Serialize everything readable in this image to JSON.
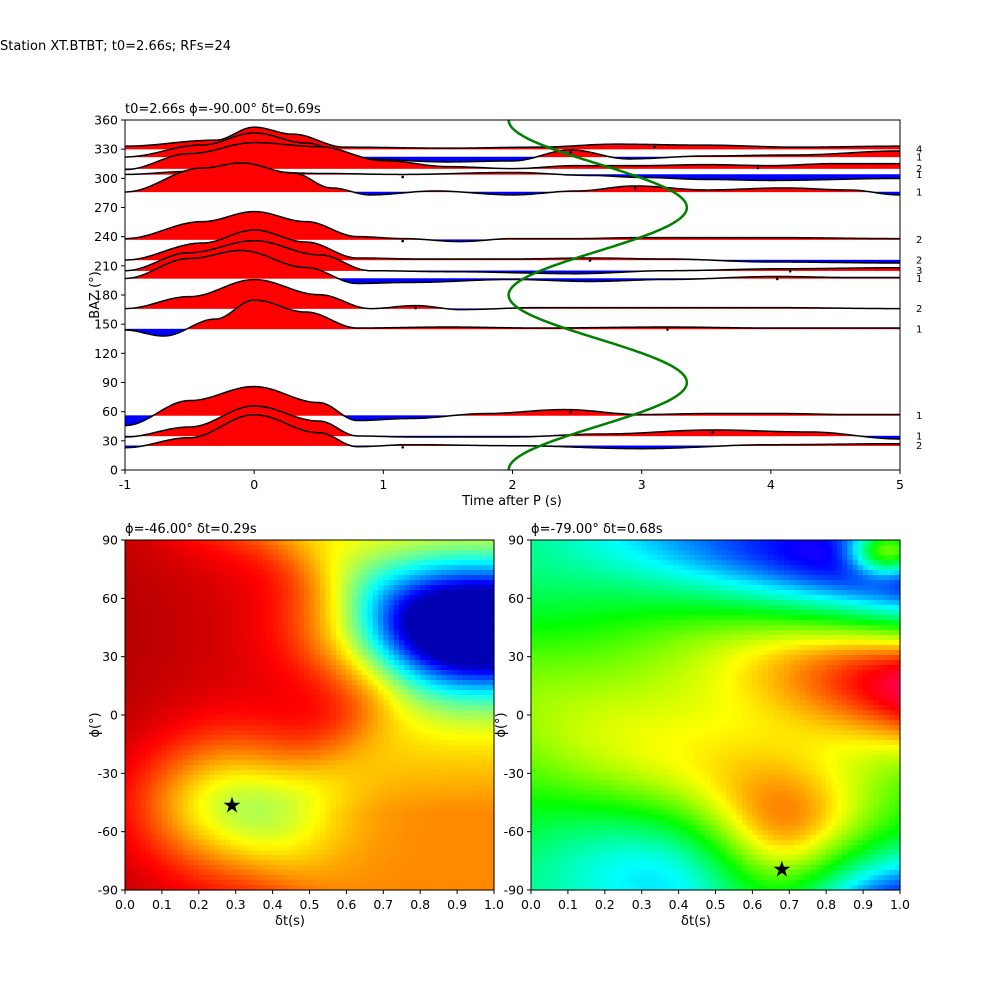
{
  "figure": {
    "suptitle": "Station XT.BTBT; t0=2.66s; RFs=24"
  },
  "chart_data": [
    {
      "type": "line",
      "title": "t0=2.66s ϕ=-90.00° δt=0.69s",
      "xlabel": "Time after P (s)",
      "ylabel": "BAZ (°)",
      "xlim": [
        -1,
        5
      ],
      "ylim": [
        0,
        360
      ],
      "xticks": [
        -1,
        0,
        1,
        2,
        3,
        4,
        5
      ],
      "yticks": [
        0,
        30,
        60,
        90,
        120,
        150,
        180,
        210,
        240,
        270,
        300,
        330,
        360
      ],
      "amp_scale": 10,
      "traces": [
        {
          "baz": 330,
          "count": "4",
          "pick_t": 3.1,
          "pts": [
            [
              -1,
              0.3
            ],
            [
              -0.3,
              0.9
            ],
            [
              0,
              2.2
            ],
            [
              0.3,
              1.5
            ],
            [
              0.7,
              0.2
            ],
            [
              1.5,
              0.1
            ],
            [
              2.2,
              0.2
            ],
            [
              2.8,
              0.5
            ],
            [
              3.5,
              0.4
            ],
            [
              4.2,
              0.2
            ],
            [
              5,
              0.3
            ]
          ]
        },
        {
          "baz": 322,
          "count": "1",
          "pick_t": 2.45,
          "pts": [
            [
              -1,
              0
            ],
            [
              -0.4,
              1.2
            ],
            [
              0,
              2.4
            ],
            [
              0.4,
              1.4
            ],
            [
              0.8,
              -0.2
            ],
            [
              1.5,
              -0.5
            ],
            [
              2,
              -0.4
            ],
            [
              2.45,
              0.7
            ],
            [
              2.9,
              -0.2
            ],
            [
              3.5,
              0.1
            ],
            [
              4.2,
              0.2
            ],
            [
              5,
              0.6
            ]
          ]
        },
        {
          "baz": 310,
          "count": "2",
          "pick_t": 3.9,
          "pts": [
            [
              -1,
              -0.1
            ],
            [
              -0.5,
              1.5
            ],
            [
              0,
              2.6
            ],
            [
              0.5,
              2.2
            ],
            [
              1,
              0.8
            ],
            [
              1.5,
              0.2
            ],
            [
              2,
              0
            ],
            [
              2.5,
              0.3
            ],
            [
              3,
              0.3
            ],
            [
              3.5,
              0.4
            ],
            [
              4,
              0.3
            ],
            [
              4.5,
              0.5
            ],
            [
              5,
              0.5
            ]
          ]
        },
        {
          "baz": 304,
          "count": "1",
          "pick_t": 1.15,
          "pts": [
            [
              -1,
              0
            ],
            [
              -0.5,
              0.3
            ],
            [
              0,
              0.3
            ],
            [
              0.5,
              0.1
            ],
            [
              1.15,
              0
            ],
            [
              2,
              0.2
            ],
            [
              2.6,
              -0.1
            ],
            [
              3,
              -0.3
            ],
            [
              3.5,
              -0.5
            ],
            [
              4,
              -0.6
            ],
            [
              5,
              -0.4
            ]
          ]
        },
        {
          "baz": 286,
          "count": "1",
          "pick_t": 2.95,
          "pts": [
            [
              -1,
              0
            ],
            [
              -0.4,
              2.4
            ],
            [
              -0.1,
              2.9
            ],
            [
              0.3,
              1.9
            ],
            [
              0.6,
              0.4
            ],
            [
              0.9,
              -0.3
            ],
            [
              1.4,
              0.1
            ],
            [
              2,
              -0.3
            ],
            [
              2.5,
              0.1
            ],
            [
              2.95,
              0.6
            ],
            [
              3.5,
              0.2
            ],
            [
              4.1,
              0.4
            ],
            [
              4.6,
              0.2
            ],
            [
              5,
              -0.3
            ]
          ]
        },
        {
          "baz": 237,
          "count": "2",
          "pick_t": 1.15,
          "pts": [
            [
              -1,
              0.1
            ],
            [
              -0.4,
              1.8
            ],
            [
              0,
              2.8
            ],
            [
              0.4,
              1.8
            ],
            [
              0.8,
              0.3
            ],
            [
              1.15,
              0.1
            ],
            [
              1.6,
              -0.2
            ],
            [
              2,
              0.1
            ],
            [
              2.5,
              0.1
            ],
            [
              3,
              0.2
            ],
            [
              4,
              0.2
            ],
            [
              5,
              0.1
            ]
          ]
        },
        {
          "baz": 216,
          "count": "2",
          "pick_t": 2.6,
          "pts": [
            [
              -1,
              0
            ],
            [
              -0.4,
              1.7
            ],
            [
              0,
              3.0
            ],
            [
              0.4,
              1.8
            ],
            [
              0.8,
              0.2
            ],
            [
              1.3,
              0.1
            ],
            [
              2,
              0.1
            ],
            [
              2.6,
              0.2
            ],
            [
              3.2,
              0.1
            ],
            [
              4,
              -0.2
            ],
            [
              5,
              -0.3
            ]
          ]
        },
        {
          "baz": 205,
          "count": "3",
          "pick_t": 4.15,
          "pts": [
            [
              -1,
              0
            ],
            [
              -0.5,
              1.8
            ],
            [
              0,
              3.0
            ],
            [
              0.5,
              1.6
            ],
            [
              0.9,
              0
            ],
            [
              1.5,
              -0.1
            ],
            [
              2.5,
              -0.3
            ],
            [
              3.2,
              0
            ],
            [
              4.15,
              0.2
            ],
            [
              5,
              0.3
            ]
          ]
        },
        {
          "baz": 197,
          "count": "1",
          "pick_t": 4.05,
          "pts": [
            [
              -1,
              0
            ],
            [
              -0.5,
              2.0
            ],
            [
              -0.1,
              2.8
            ],
            [
              0.4,
              1.1
            ],
            [
              0.8,
              -0.5
            ],
            [
              1.2,
              -0.4
            ],
            [
              2,
              -0.1
            ],
            [
              2.6,
              -0.3
            ],
            [
              3.2,
              -0.1
            ],
            [
              4.05,
              0.2
            ],
            [
              4.6,
              0.1
            ],
            [
              5,
              0.1
            ]
          ]
        },
        {
          "baz": 166,
          "count": "2",
          "pick_t": 1.25,
          "pts": [
            [
              -1,
              0
            ],
            [
              -0.5,
              1.2
            ],
            [
              0,
              2.9
            ],
            [
              0.5,
              1.4
            ],
            [
              0.9,
              0
            ],
            [
              1.25,
              0.3
            ],
            [
              1.6,
              -0.1
            ],
            [
              2.2,
              0.1
            ],
            [
              3,
              0.1
            ],
            [
              4,
              0.1
            ],
            [
              5,
              0
            ]
          ]
        },
        {
          "baz": 145,
          "count": "1",
          "pick_t": 3.2,
          "pts": [
            [
              -1,
              -0.1
            ],
            [
              -0.7,
              -0.7
            ],
            [
              -0.3,
              1.0
            ],
            [
              0,
              2.9
            ],
            [
              0.4,
              1.7
            ],
            [
              0.8,
              0.1
            ],
            [
              1.5,
              0.2
            ],
            [
              2.2,
              0.1
            ],
            [
              3.2,
              0.2
            ],
            [
              4,
              0.1
            ],
            [
              5,
              0.1
            ]
          ]
        },
        {
          "baz": 56,
          "count": "1",
          "pick_t": 2.45,
          "pts": [
            [
              -1,
              -1.0
            ],
            [
              -0.5,
              1.5
            ],
            [
              0,
              2.9
            ],
            [
              0.5,
              1.3
            ],
            [
              0.8,
              -0.5
            ],
            [
              1.2,
              -0.3
            ],
            [
              1.8,
              0.2
            ],
            [
              2.4,
              0.6
            ],
            [
              3,
              0.1
            ],
            [
              3.5,
              0.2
            ],
            [
              4.1,
              0.2
            ],
            [
              4.6,
              0.1
            ],
            [
              5,
              0.1
            ]
          ]
        },
        {
          "baz": 35,
          "count": "1",
          "pick_t": 3.55,
          "pts": [
            [
              -1,
              -0.1
            ],
            [
              -0.5,
              0.9
            ],
            [
              0,
              3.0
            ],
            [
              0.5,
              1.5
            ],
            [
              0.8,
              0
            ],
            [
              1.2,
              -0.1
            ],
            [
              2,
              -0.1
            ],
            [
              2.7,
              0.2
            ],
            [
              3.55,
              0.6
            ],
            [
              4.3,
              0.4
            ],
            [
              5,
              -0.3
            ]
          ]
        },
        {
          "baz": 25,
          "count": "2",
          "pick_t": 1.15,
          "pts": [
            [
              -1,
              -0.2
            ],
            [
              -0.5,
              0.8
            ],
            [
              0,
              3.1
            ],
            [
              0.5,
              1.3
            ],
            [
              0.8,
              -0.1
            ],
            [
              1.2,
              0.1
            ],
            [
              2,
              0
            ],
            [
              3,
              -0.3
            ],
            [
              4,
              0.1
            ],
            [
              5,
              0.2
            ]
          ]
        }
      ],
      "curve": {
        "color": "#008000",
        "x0": 2.66,
        "amp": 0.69,
        "period_deg": 180,
        "phase_deg": -90
      }
    },
    {
      "type": "heatmap",
      "title": "ϕ=-46.00° δt=0.29s",
      "xlabel": "δt(s)",
      "ylabel": "ϕ(°)",
      "xlim": [
        0,
        1
      ],
      "ylim": [
        -90,
        90
      ],
      "xticks": [
        0.0,
        0.1,
        0.2,
        0.3,
        0.4,
        0.5,
        0.6,
        0.7,
        0.8,
        0.9,
        1.0
      ],
      "yticks": [
        -90,
        -60,
        -30,
        0,
        30,
        60,
        90
      ],
      "colormap": "jet",
      "best": {
        "dt": 0.29,
        "phi": -46
      }
    },
    {
      "type": "heatmap",
      "title": "ϕ=-79.00° δt=0.68s",
      "xlabel": "δt(s)",
      "ylabel": "ϕ(°)",
      "xlim": [
        0,
        1
      ],
      "ylim": [
        -90,
        90
      ],
      "xticks": [
        0.0,
        0.1,
        0.2,
        0.3,
        0.4,
        0.5,
        0.6,
        0.7,
        0.8,
        0.9,
        1.0
      ],
      "yticks": [
        -90,
        -60,
        -30,
        0,
        30,
        60,
        90
      ],
      "colormap": "hsv",
      "best": {
        "dt": 0.68,
        "phi": -79
      }
    }
  ],
  "colors": {
    "positive_fill": "#ff0000",
    "negative_fill": "#0000ff",
    "trace_line": "#000000",
    "axes": "#000000"
  }
}
